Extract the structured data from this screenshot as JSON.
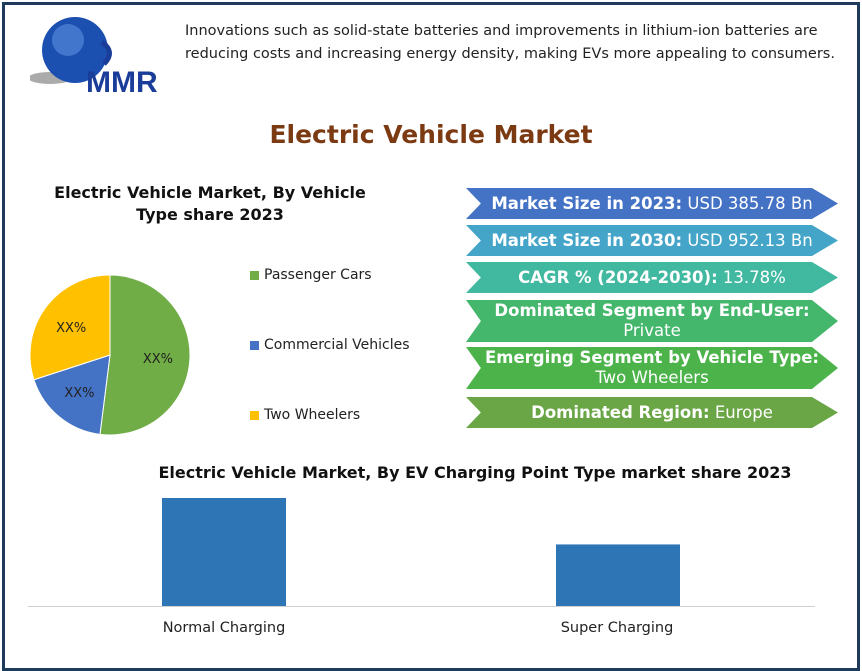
{
  "logo": {
    "text": "MMR"
  },
  "intro": "Innovations such as solid-state batteries and improvements in lithium-ion batteries are reducing costs and increasing energy density, making EVs more appealing to consumers.",
  "title": "Electric Vehicle Market",
  "highlights": [
    {
      "label": "Market Size in 2023:",
      "value": "USD 385.78 Bn",
      "color": "#4472c4"
    },
    {
      "label": "Market Size in 2030:",
      "value": "USD 952.13 Bn",
      "color": "#44a5c9"
    },
    {
      "label": "CAGR % (2024-2030):",
      "value": "13.78%",
      "color": "#41b8a0"
    },
    {
      "label": "Dominated Segment by  End-User:",
      "value": "Private",
      "color": "#44b76c"
    },
    {
      "label": "Emerging Segment by  Vehicle Type:",
      "value": "Two Wheelers",
      "color": "#4cb34a"
    },
    {
      "label": "Dominated Region:",
      "value": "Europe",
      "color": "#6aa646"
    }
  ],
  "chart_data": [
    {
      "type": "pie",
      "title": "Electric Vehicle Market, By Vehicle Type share  2023",
      "categories": [
        "Passenger Cars",
        "Commercial Vehicles",
        "Two Wheelers"
      ],
      "values": [
        52,
        18,
        30
      ],
      "data_labels": [
        "XX%",
        "XX%",
        "XX%"
      ],
      "colors": [
        "#70ad47",
        "#4472c4",
        "#ffc000"
      ],
      "legend": "right"
    },
    {
      "type": "bar",
      "title": "Electric Vehicle Market, By EV Charging Point Type market share  2023",
      "categories": [
        "Normal Charging",
        "Super Charging"
      ],
      "values": [
        100,
        57
      ],
      "color": "#2e75b6",
      "grid": false
    }
  ]
}
